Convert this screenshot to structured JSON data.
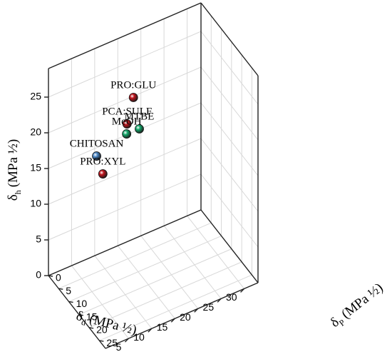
{
  "chart_data": {
    "type": "scatter3d",
    "xlabel": "δd (MPa ½)",
    "ylabel": "δp (MPa ½)",
    "zlabel": "δh (MPa ½)",
    "axis_symbols": {
      "x": "δ",
      "x_sub": "d",
      "y": "δ",
      "y_sub": "P",
      "z": "δ",
      "z_sub": "h",
      "unit": "(MPa ½)"
    },
    "xlim": [
      0,
      33
    ],
    "ylim": [
      0,
      28
    ],
    "zlim": [
      0,
      29
    ],
    "x_ticks": [
      5,
      10,
      15,
      20,
      25,
      30
    ],
    "y_ticks": [
      0,
      5,
      10,
      15,
      20,
      25
    ],
    "z_ticks": [
      0,
      5,
      10,
      15,
      20,
      25
    ],
    "grid": true,
    "legend": "none",
    "points": [
      {
        "name": "CHITOSAN",
        "x": 0.5,
        "y": 22.5,
        "z": 24.8,
        "color": "#4a86c5"
      },
      {
        "name": "PRO:XYL",
        "x": 4.5,
        "y": 16.5,
        "z": 19.0,
        "color": "#c0141c"
      },
      {
        "name": "MeOH",
        "x": 12.5,
        "y": 10.0,
        "z": 20.0,
        "color": "#13a86b"
      },
      {
        "name": "PRO:GLU",
        "x": 17.5,
        "y": 2.0,
        "z": 20.8,
        "color": "#c0141c"
      },
      {
        "name": "PCA:SULF",
        "x": 17.0,
        "y": 0.0,
        "z": 16.5,
        "color": "#c0141c"
      },
      {
        "name": "MTBE",
        "x": 19.0,
        "y": 1.5,
        "z": 15.8,
        "color": "#13a86b"
      }
    ]
  }
}
